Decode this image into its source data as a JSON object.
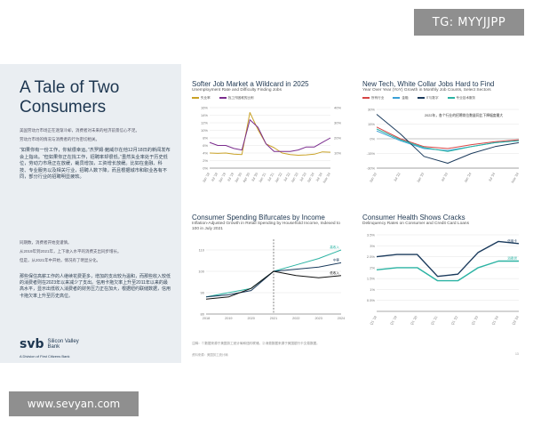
{
  "watermarks": {
    "top": "TG: MYYJJPP",
    "bottom": "www.sevyan.com"
  },
  "left": {
    "title": "A Tale of Two Consumers",
    "intro": "美国劳动力市场正在逐渐冷却，消费者对未来的经济前景信心不足。",
    "intro2": "劳动力市场的情况与消费者的行为密切相关。",
    "quote": "“如果你有一份工作，你就很幸运。”杰罗姆·鲍威尔在他12月18日的新闻发布会上指出。“但如果你正在找工作，招聘率却很低。”虽然失业率处于历史低位，劳动力市场正在放缓，裁员增加，工资增长放缓。比如在金融、科技、专业服务以及相关行业，招聘人数下降，而且根据城市和职业各有不同，部分行业的招聘明显疲软。",
    "note1": "同期数，消费者开始变谨慎。",
    "note2": "从2019年到2021年，上下收入水平的消费支出同步增长。",
    "note3": "但是，从2021年中开始，情况有了明显分化。",
    "para": "那些保住高薪工作的人继续花费更多，增加的支出较为温和，而那些收入较低的消费者则在2023年以来减少了支出。信用卡拖欠率上升至2011年以来的最高水平，显示出低收入消费者的财务压力正在加大，根据纽约联储数据，信用卡拖欠率上升至历史高位。",
    "logo_mark": "svb",
    "logo_name": "Silicon Valley Bank",
    "logo_sub": "A Division of First Citizens Bank"
  },
  "charts": {
    "c1": {
      "title": "Softer Job Market a Wildcard in 2025",
      "subtitle": "Unemployment Rate and Difficulty Finding Jobs",
      "legend": [
        "失业率",
        "找工作困难的比例"
      ],
      "ylabel_left": "Unemployment Rate",
      "ylabel_right": "Job Hard to Find"
    },
    "c2": {
      "title": "New Tech, White Collar Jobs Hard to Find",
      "subtitle": "Year Over Year (YoY) Growth in Monthly Job Counts, Select Sectors",
      "legend": [
        "所有行业",
        "金融",
        "IT与数字",
        "专业技术服务"
      ],
      "annotation": "2022年，各个行业的招聘岗位数量同比下降幅度最大"
    },
    "c3": {
      "title": "Consumer Spending Bifurcates by Income",
      "subtitle": "Inflation-Adjusted Growth in Retail Spending by Household Income, Indexed to 100 in July 2021",
      "series_labels": [
        "高收入",
        "中等",
        "低收入"
      ]
    },
    "c4": {
      "title": "Consumer Health Shows Cracks",
      "subtitle": "Delinquency Rates on Consumer and Credit Card Loans",
      "series_labels": [
        "信用卡",
        "消费贷"
      ]
    }
  },
  "footer": "注释：①数据来源于美国劳工统计局和纽约联储。②消费数据来源于美国银行卡交易数据。",
  "footer2": "资料来源：美国劳工统计局",
  "page_number": "13",
  "chart_data": [
    {
      "type": "line",
      "x": [
        "Jan '18",
        "Jul '18",
        "Jan '19",
        "Jul '19",
        "Jan '20",
        "Apr '20",
        "Jul '20",
        "Jan '21",
        "Jul '21",
        "Jan '22",
        "Jul '22",
        "Jan '23",
        "Jul '23",
        "Jan '24",
        "Jul '24",
        "Nov '24"
      ],
      "series": [
        {
          "name": "失业率",
          "values": [
            4.0,
            3.9,
            4.0,
            3.7,
            3.6,
            14.7,
            10.2,
            6.4,
            5.4,
            4.0,
            3.6,
            3.4,
            3.5,
            3.7,
            4.3,
            4.2
          ]
        },
        {
          "name": "找工作困难的比例",
          "values": [
            17,
            15,
            15,
            13,
            12,
            32,
            27,
            16,
            11,
            11,
            11,
            12,
            14,
            14,
            17,
            20
          ]
        }
      ]
    },
    {
      "type": "line",
      "x": [
        "Jan '22",
        "Jul '22",
        "Jan '23",
        "Jul '23",
        "Jan '24",
        "Jul '24",
        "Nov '24"
      ],
      "series": [
        {
          "name": "所有行业",
          "values": [
            12,
            0,
            -8,
            -10,
            -6,
            -3,
            -1
          ]
        },
        {
          "name": "金融",
          "values": [
            8,
            -2,
            -10,
            -12,
            -8,
            -4,
            -2
          ]
        },
        {
          "name": "IT与数字",
          "values": [
            25,
            5,
            -18,
            -25,
            -15,
            -8,
            -4
          ]
        },
        {
          "name": "专业技术服务",
          "values": [
            10,
            -1,
            -9,
            -13,
            -8,
            -4,
            -2
          ]
        }
      ]
    },
    {
      "type": "line",
      "x": [
        "2018",
        "2019",
        "2020",
        "2021",
        "2022",
        "2023",
        "2024"
      ],
      "series": [
        {
          "name": "高收入",
          "values": [
            88,
            90,
            92,
            100,
            103,
            106,
            110
          ]
        },
        {
          "name": "中等",
          "values": [
            88,
            89,
            91,
            100,
            101,
            102,
            104
          ]
        },
        {
          "name": "低收入",
          "values": [
            87,
            88,
            92,
            100,
            98,
            97,
            98
          ]
        }
      ]
    },
    {
      "type": "line",
      "x": [
        "Q1 '18",
        "Q1 '19",
        "Q1 '20",
        "Q1 '21",
        "Q1 '22",
        "Q1 '23",
        "Q1 '24",
        "Q3 '24"
      ],
      "series": [
        {
          "name": "信用卡",
          "values": [
            2.5,
            2.6,
            2.6,
            1.6,
            1.7,
            2.7,
            3.2,
            3.1
          ]
        },
        {
          "name": "消费贷",
          "values": [
            1.9,
            2.0,
            2.0,
            1.4,
            1.4,
            2.0,
            2.3,
            2.3
          ]
        }
      ]
    }
  ]
}
